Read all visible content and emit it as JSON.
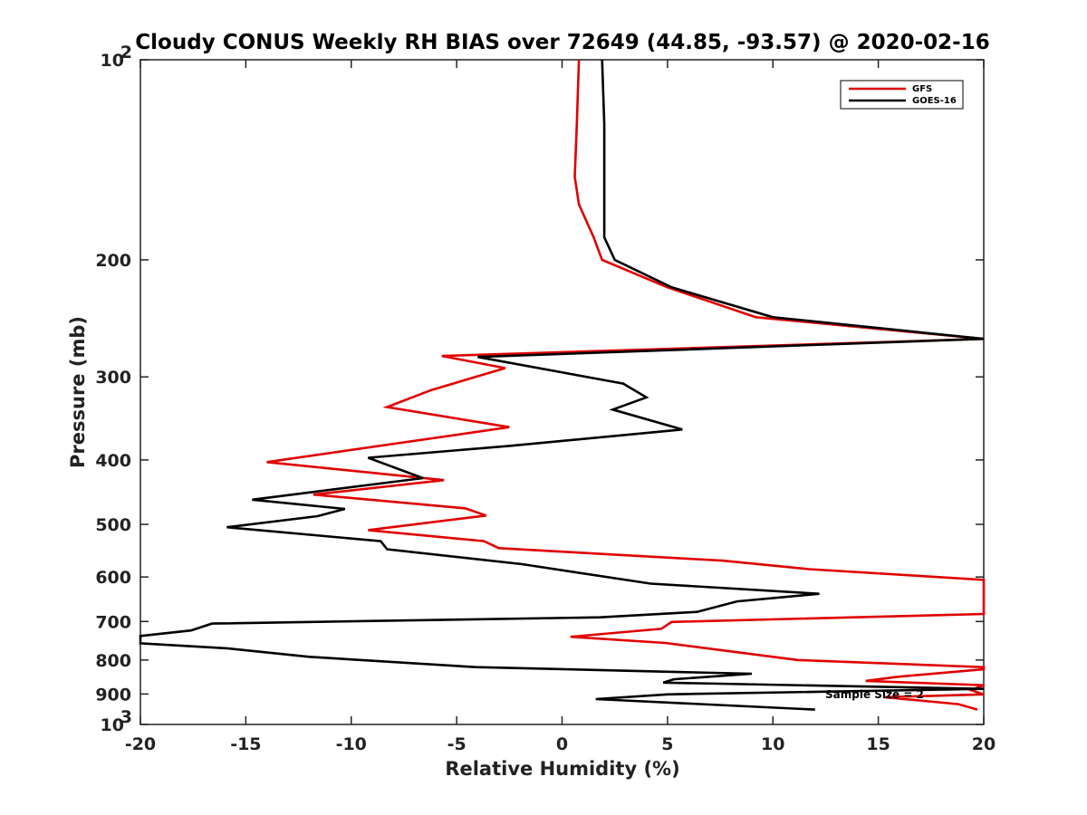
{
  "chart_data": {
    "type": "line",
    "title": "Cloudy CONUS Weekly RH BIAS over 72649 (44.85, -93.57) @ 2020-02-16",
    "xlabel": "Relative Humidity (%)",
    "ylabel": "Pressure (mb)",
    "xlim": [
      -20,
      20
    ],
    "ylim": [
      1000,
      100
    ],
    "yscale": "log",
    "x_ticks": [
      "-20",
      "-15",
      "-10",
      "-5",
      "0",
      "5",
      "10",
      "15",
      "20"
    ],
    "y_ticks": [
      {
        "value": 100,
        "label": "10",
        "sup": "2"
      },
      {
        "value": 200,
        "label": "200",
        "sup": ""
      },
      {
        "value": 300,
        "label": "300",
        "sup": ""
      },
      {
        "value": 400,
        "label": "400",
        "sup": ""
      },
      {
        "value": 500,
        "label": "500",
        "sup": ""
      },
      {
        "value": 600,
        "label": "600",
        "sup": ""
      },
      {
        "value": 700,
        "label": "700",
        "sup": ""
      },
      {
        "value": 800,
        "label": "800",
        "sup": ""
      },
      {
        "value": 900,
        "label": "900",
        "sup": ""
      },
      {
        "value": 1000,
        "label": "10",
        "sup": "3"
      }
    ],
    "grid": false,
    "legend": "top-right",
    "annotation": "Sample Size = 2",
    "series": [
      {
        "name": "GFS",
        "color": "#e00000",
        "points": [
          [
            0.8,
            100
          ],
          [
            0.7,
            125
          ],
          [
            0.6,
            150
          ],
          [
            0.8,
            165
          ],
          [
            1.5,
            185
          ],
          [
            1.9,
            200
          ],
          [
            5.0,
            220
          ],
          [
            9.2,
            244
          ],
          [
            20.0,
            263
          ],
          [
            -5.7,
            279
          ],
          [
            -2.7,
            291
          ],
          [
            -6.2,
            314
          ],
          [
            -8.3,
            333
          ],
          [
            -2.5,
            357
          ],
          [
            -14.0,
            403
          ],
          [
            -5.6,
            429
          ],
          [
            -11.8,
            451
          ],
          [
            -4.6,
            473
          ],
          [
            -3.6,
            485
          ],
          [
            -9.2,
            510
          ],
          [
            -3.7,
            530
          ],
          [
            -3.0,
            543
          ],
          [
            7.6,
            567
          ],
          [
            11.7,
            584
          ],
          [
            20.0,
            606
          ],
          [
            20.0,
            682
          ],
          [
            5.2,
            701
          ],
          [
            4.7,
            718
          ],
          [
            0.4,
            738
          ],
          [
            4.9,
            754
          ],
          [
            11.2,
            800
          ],
          [
            20.0,
            820
          ],
          [
            20.0,
            826
          ],
          [
            15.9,
            848
          ],
          [
            14.4,
            860
          ],
          [
            20.0,
            873
          ],
          [
            19.4,
            888
          ],
          [
            20.0,
            901
          ],
          [
            15.3,
            910
          ],
          [
            18.8,
            932
          ],
          [
            19.7,
            950
          ]
        ]
      },
      {
        "name": "GOES-16",
        "color": "#000000",
        "points": [
          [
            1.9,
            100
          ],
          [
            2.0,
            125
          ],
          [
            2.0,
            150
          ],
          [
            2.0,
            185
          ],
          [
            2.5,
            200
          ],
          [
            5.2,
            220
          ],
          [
            10.0,
            244
          ],
          [
            20.0,
            263
          ],
          [
            -4.0,
            280
          ],
          [
            2.9,
            307
          ],
          [
            4.0,
            322
          ],
          [
            2.4,
            336
          ],
          [
            5.7,
            360
          ],
          [
            -2.5,
            381
          ],
          [
            -9.2,
            397
          ],
          [
            -6.6,
            426
          ],
          [
            -14.7,
            459
          ],
          [
            -10.3,
            474
          ],
          [
            -11.6,
            486
          ],
          [
            -15.9,
            505
          ],
          [
            -8.6,
            530
          ],
          [
            -8.3,
            545
          ],
          [
            -1.9,
            574
          ],
          [
            4.2,
            614
          ],
          [
            12.2,
            636
          ],
          [
            8.3,
            653
          ],
          [
            6.4,
            677
          ],
          [
            1.8,
            690
          ],
          [
            -16.6,
            705
          ],
          [
            -17.6,
            722
          ],
          [
            -20.0,
            736
          ],
          [
            -20.0,
            755
          ],
          [
            -15.9,
            768
          ],
          [
            -12.0,
            791
          ],
          [
            -4.1,
            820
          ],
          [
            9.0,
            839
          ],
          [
            5.3,
            855
          ],
          [
            4.8,
            865
          ],
          [
            20.0,
            884
          ],
          [
            5.0,
            901
          ],
          [
            1.6,
            916
          ],
          [
            12.0,
            950
          ]
        ]
      }
    ]
  }
}
